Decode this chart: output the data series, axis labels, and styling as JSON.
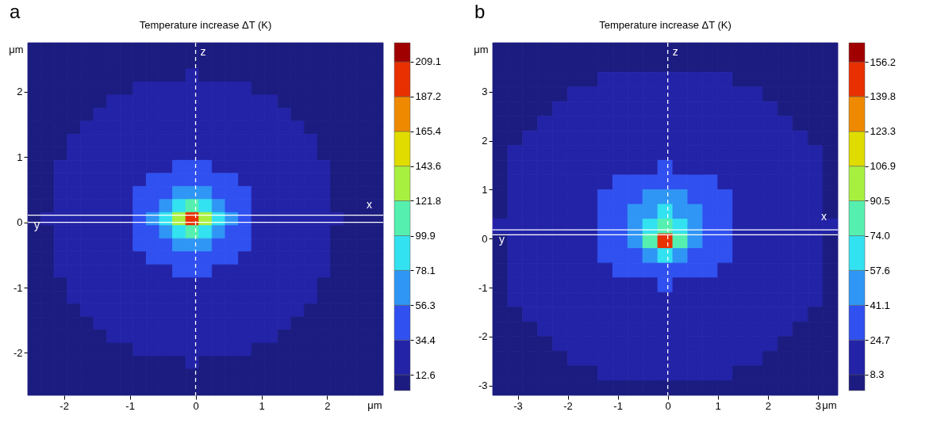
{
  "chart_data": [
    {
      "type": "heatmap",
      "title": "Temperature increase ΔT (K)",
      "xlabel": "μm",
      "ylabel": "μm",
      "annotations": [
        "a"
      ],
      "ref_lines": [
        {
          "axis": "x",
          "value": 0,
          "label": "z",
          "color": "#ffffff",
          "line_style": "dashed"
        },
        {
          "axis": "y",
          "value": 0,
          "label": "x",
          "color": "#ffffff",
          "line_style": "solid"
        },
        {
          "axis": "y",
          "value": 0.11,
          "label": "y",
          "color": "#ffffff",
          "line_style": "solid"
        }
      ],
      "xlim": [
        -2.55,
        2.85
      ],
      "ylim": [
        -2.65,
        2.75
      ],
      "xticks": [
        -2,
        -1,
        0,
        1,
        2
      ],
      "yticks": [
        -2,
        -1,
        0,
        1,
        2
      ],
      "clim": [
        2.7,
        221
      ],
      "cticks": [
        12.6,
        34.4,
        56.3,
        78.1,
        99.9,
        121.8,
        143.6,
        165.4,
        187.2,
        209.1
      ],
      "colors": [
        "#1c1c80",
        "#2323a8",
        "#3050f0",
        "#3096f5",
        "#33e2f0",
        "#55f0b0",
        "#a8f040",
        "#e0dc00",
        "#ef8a00",
        "#e83000",
        "#a00000"
      ],
      "cells": [
        [
          7.7,
          7.7,
          7.7,
          7.7,
          7.7,
          7.7,
          7.7,
          7.7,
          7.7,
          7.7,
          7.7,
          7.7,
          7.7,
          7.7,
          7.7,
          7.7,
          7.7,
          7.7,
          7.7,
          7.7,
          7.7,
          7.7,
          7.7,
          7.7,
          7.7,
          7.7,
          7.7
        ],
        [
          7.7,
          7.7,
          7.7,
          7.7,
          7.7,
          7.7,
          7.7,
          7.7,
          7.7,
          7.7,
          7.7,
          7.7,
          7.7,
          7.7,
          7.7,
          7.7,
          7.7,
          7.7,
          7.7,
          7.7,
          7.7,
          7.7,
          7.7,
          7.7,
          7.7,
          7.7,
          7.7
        ],
        [
          7.7,
          7.7,
          7.7,
          7.7,
          7.7,
          7.7,
          7.7,
          7.7,
          7.7,
          7.7,
          7.7,
          7.7,
          23.5,
          7.7,
          7.7,
          7.7,
          7.7,
          7.7,
          7.7,
          7.7,
          7.7,
          7.7,
          7.7,
          7.7,
          7.7,
          7.7,
          7.7
        ],
        [
          7.7,
          7.7,
          7.7,
          7.7,
          7.7,
          7.7,
          7.7,
          7.7,
          23.5,
          23.5,
          23.5,
          23.5,
          23.5,
          23.5,
          23.5,
          23.5,
          23.5,
          7.7,
          7.7,
          7.7,
          7.7,
          7.7,
          7.7,
          7.7,
          7.7,
          7.7,
          7.7
        ],
        [
          7.7,
          7.7,
          7.7,
          7.7,
          7.7,
          7.7,
          23.5,
          23.5,
          23.5,
          23.5,
          23.5,
          23.5,
          23.5,
          23.5,
          23.5,
          23.5,
          23.5,
          23.5,
          23.5,
          7.7,
          7.7,
          7.7,
          7.7,
          7.7,
          7.7,
          7.7,
          7.7
        ],
        [
          7.7,
          7.7,
          7.7,
          7.7,
          7.7,
          23.5,
          23.5,
          23.5,
          23.5,
          23.5,
          23.5,
          23.5,
          23.5,
          23.5,
          23.5,
          23.5,
          23.5,
          23.5,
          23.5,
          23.5,
          7.7,
          7.7,
          7.7,
          7.7,
          7.7,
          7.7,
          7.7
        ],
        [
          7.7,
          7.7,
          7.7,
          7.7,
          23.5,
          23.5,
          23.5,
          23.5,
          23.5,
          23.5,
          23.5,
          23.5,
          23.5,
          23.5,
          23.5,
          23.5,
          23.5,
          23.5,
          23.5,
          23.5,
          23.5,
          7.7,
          7.7,
          7.7,
          7.7,
          7.7,
          7.7
        ],
        [
          7.7,
          7.7,
          7.7,
          23.5,
          23.5,
          23.5,
          23.5,
          23.5,
          23.5,
          23.5,
          23.5,
          23.5,
          23.5,
          23.5,
          23.5,
          23.5,
          23.5,
          23.5,
          23.5,
          23.5,
          23.5,
          23.5,
          7.7,
          7.7,
          7.7,
          7.7,
          7.7
        ],
        [
          7.7,
          7.7,
          7.7,
          23.5,
          23.5,
          23.5,
          23.5,
          23.5,
          23.5,
          23.5,
          23.5,
          23.5,
          23.5,
          23.5,
          23.5,
          23.5,
          23.5,
          23.5,
          23.5,
          23.5,
          23.5,
          23.5,
          7.7,
          7.7,
          7.7,
          7.7,
          7.7
        ],
        [
          7.7,
          7.7,
          23.5,
          23.5,
          23.5,
          23.5,
          23.5,
          23.5,
          23.5,
          23.5,
          23.5,
          45.4,
          45.4,
          45.4,
          23.5,
          23.5,
          23.5,
          23.5,
          23.5,
          23.5,
          23.5,
          23.5,
          23.5,
          7.7,
          7.7,
          7.7,
          7.7
        ],
        [
          7.7,
          7.7,
          23.5,
          23.5,
          23.5,
          23.5,
          23.5,
          23.5,
          23.5,
          45.4,
          45.4,
          45.4,
          45.4,
          45.4,
          45.4,
          45.4,
          23.5,
          23.5,
          23.5,
          23.5,
          23.5,
          23.5,
          23.5,
          7.7,
          7.7,
          7.7,
          7.7
        ],
        [
          7.7,
          7.7,
          23.5,
          23.5,
          23.5,
          23.5,
          23.5,
          23.5,
          45.4,
          45.4,
          45.4,
          67.2,
          67.2,
          67.2,
          45.4,
          45.4,
          45.4,
          23.5,
          23.5,
          23.5,
          23.5,
          23.5,
          23.5,
          7.7,
          7.7,
          7.7,
          7.7
        ],
        [
          7.7,
          7.7,
          23.5,
          23.5,
          23.5,
          23.5,
          23.5,
          23.5,
          45.4,
          45.4,
          67.2,
          89.0,
          110.9,
          89.0,
          67.2,
          45.4,
          45.4,
          23.5,
          23.5,
          23.5,
          23.5,
          23.5,
          23.5,
          7.7,
          7.7,
          7.7,
          7.7
        ],
        [
          7.7,
          23.5,
          23.5,
          23.5,
          23.5,
          23.5,
          23.5,
          23.5,
          45.4,
          67.2,
          89.0,
          132.7,
          198.2,
          132.7,
          89.0,
          67.2,
          45.4,
          23.5,
          23.5,
          23.5,
          23.5,
          23.5,
          23.5,
          23.5,
          7.7,
          7.7,
          7.7
        ],
        [
          7.7,
          7.7,
          23.5,
          23.5,
          23.5,
          23.5,
          23.5,
          23.5,
          45.4,
          45.4,
          67.2,
          89.0,
          110.9,
          89.0,
          67.2,
          45.4,
          45.4,
          23.5,
          23.5,
          23.5,
          23.5,
          23.5,
          23.5,
          7.7,
          7.7,
          7.7,
          7.7
        ],
        [
          7.7,
          7.7,
          23.5,
          23.5,
          23.5,
          23.5,
          23.5,
          23.5,
          45.4,
          45.4,
          45.4,
          67.2,
          67.2,
          67.2,
          45.4,
          45.4,
          45.4,
          23.5,
          23.5,
          23.5,
          23.5,
          23.5,
          23.5,
          7.7,
          7.7,
          7.7,
          7.7
        ],
        [
          7.7,
          7.7,
          23.5,
          23.5,
          23.5,
          23.5,
          23.5,
          23.5,
          23.5,
          45.4,
          45.4,
          45.4,
          45.4,
          45.4,
          45.4,
          45.4,
          23.5,
          23.5,
          23.5,
          23.5,
          23.5,
          23.5,
          23.5,
          7.7,
          7.7,
          7.7,
          7.7
        ],
        [
          7.7,
          7.7,
          23.5,
          23.5,
          23.5,
          23.5,
          23.5,
          23.5,
          23.5,
          23.5,
          23.5,
          45.4,
          45.4,
          45.4,
          23.5,
          23.5,
          23.5,
          23.5,
          23.5,
          23.5,
          23.5,
          23.5,
          23.5,
          7.7,
          7.7,
          7.7,
          7.7
        ],
        [
          7.7,
          7.7,
          7.7,
          23.5,
          23.5,
          23.5,
          23.5,
          23.5,
          23.5,
          23.5,
          23.5,
          23.5,
          23.5,
          23.5,
          23.5,
          23.5,
          23.5,
          23.5,
          23.5,
          23.5,
          23.5,
          23.5,
          7.7,
          7.7,
          7.7,
          7.7,
          7.7
        ],
        [
          7.7,
          7.7,
          7.7,
          23.5,
          23.5,
          23.5,
          23.5,
          23.5,
          23.5,
          23.5,
          23.5,
          23.5,
          23.5,
          23.5,
          23.5,
          23.5,
          23.5,
          23.5,
          23.5,
          23.5,
          23.5,
          23.5,
          7.7,
          7.7,
          7.7,
          7.7,
          7.7
        ],
        [
          7.7,
          7.7,
          7.7,
          7.7,
          23.5,
          23.5,
          23.5,
          23.5,
          23.5,
          23.5,
          23.5,
          23.5,
          23.5,
          23.5,
          23.5,
          23.5,
          23.5,
          23.5,
          23.5,
          23.5,
          23.5,
          7.7,
          7.7,
          7.7,
          7.7,
          7.7,
          7.7
        ],
        [
          7.7,
          7.7,
          7.7,
          7.7,
          7.7,
          23.5,
          23.5,
          23.5,
          23.5,
          23.5,
          23.5,
          23.5,
          23.5,
          23.5,
          23.5,
          23.5,
          23.5,
          23.5,
          23.5,
          23.5,
          7.7,
          7.7,
          7.7,
          7.7,
          7.7,
          7.7,
          7.7
        ],
        [
          7.7,
          7.7,
          7.7,
          7.7,
          7.7,
          7.7,
          23.5,
          23.5,
          23.5,
          23.5,
          23.5,
          23.5,
          23.5,
          23.5,
          23.5,
          23.5,
          23.5,
          23.5,
          23.5,
          7.7,
          7.7,
          7.7,
          7.7,
          7.7,
          7.7,
          7.7,
          7.7
        ],
        [
          7.7,
          7.7,
          7.7,
          7.7,
          7.7,
          7.7,
          7.7,
          7.7,
          23.5,
          23.5,
          23.5,
          23.5,
          23.5,
          23.5,
          23.5,
          23.5,
          23.5,
          7.7,
          7.7,
          7.7,
          7.7,
          7.7,
          7.7,
          7.7,
          7.7,
          7.7,
          7.7
        ],
        [
          7.7,
          7.7,
          7.7,
          7.7,
          7.7,
          7.7,
          7.7,
          7.7,
          7.7,
          7.7,
          7.7,
          7.7,
          23.5,
          7.7,
          7.7,
          7.7,
          7.7,
          7.7,
          7.7,
          7.7,
          7.7,
          7.7,
          7.7,
          7.7,
          7.7,
          7.7,
          7.7
        ],
        [
          7.7,
          7.7,
          7.7,
          7.7,
          7.7,
          7.7,
          7.7,
          7.7,
          7.7,
          7.7,
          7.7,
          7.7,
          7.7,
          7.7,
          7.7,
          7.7,
          7.7,
          7.7,
          7.7,
          7.7,
          7.7,
          7.7,
          7.7,
          7.7,
          7.7,
          7.7,
          7.7
        ],
        [
          7.7,
          7.7,
          7.7,
          7.7,
          7.7,
          7.7,
          7.7,
          7.7,
          7.7,
          7.7,
          7.7,
          7.7,
          7.7,
          7.7,
          7.7,
          7.7,
          7.7,
          7.7,
          7.7,
          7.7,
          7.7,
          7.7,
          7.7,
          7.7,
          7.7,
          7.7,
          7.7
        ]
      ]
    },
    {
      "type": "heatmap",
      "title": "Temperature increase ΔT (K)",
      "xlabel": "μm",
      "ylabel": "μm",
      "annotations": [
        "b"
      ],
      "ref_lines": [
        {
          "axis": "x",
          "value": 0,
          "label": "z",
          "color": "#ffffff",
          "line_style": "dashed"
        },
        {
          "axis": "y",
          "value": 0.08,
          "label": "x",
          "color": "#ffffff",
          "line_style": "solid"
        },
        {
          "axis": "y",
          "value": 0.18,
          "label": "y",
          "color": "#ffffff",
          "line_style": "solid"
        }
      ],
      "xlim": [
        -3.5,
        3.4
      ],
      "ylim": [
        -3.2,
        4.0
      ],
      "xticks": [
        -3,
        -2,
        -1,
        0,
        1,
        2,
        3
      ],
      "yticks": [
        -3,
        -2,
        -1,
        0,
        1,
        2,
        3
      ],
      "clim": [
        0.8,
        165.2
      ],
      "cticks": [
        8.3,
        24.7,
        41.1,
        57.6,
        {
          "value": 74,
          "label": "74.0"
        },
        90.5,
        106.9,
        123.3,
        139.8,
        156.2
      ],
      "colors": [
        "#1c1c80",
        "#2323a8",
        "#3050f0",
        "#3096f5",
        "#33e2f0",
        "#55f0b0",
        "#a8f040",
        "#e0dc00",
        "#ef8a00",
        "#e83000",
        "#a00000"
      ],
      "cells": [
        [
          4.6,
          4.6,
          4.6,
          4.6,
          4.6,
          4.6,
          4.6,
          4.6,
          4.6,
          4.6,
          4.6,
          4.6,
          4.6,
          4.6,
          4.6,
          4.6,
          4.6,
          4.6,
          4.6,
          4.6,
          4.6,
          4.6,
          4.6
        ],
        [
          4.6,
          4.6,
          4.6,
          4.6,
          4.6,
          4.6,
          4.6,
          4.6,
          4.6,
          4.6,
          4.6,
          4.6,
          4.6,
          4.6,
          4.6,
          4.6,
          4.6,
          4.6,
          4.6,
          4.6,
          4.6,
          4.6,
          4.6
        ],
        [
          4.6,
          4.6,
          4.6,
          4.6,
          4.6,
          4.6,
          4.6,
          16.5,
          16.5,
          16.5,
          16.5,
          16.5,
          16.5,
          16.5,
          16.5,
          16.5,
          4.6,
          4.6,
          4.6,
          4.6,
          4.6,
          4.6,
          4.6
        ],
        [
          4.6,
          4.6,
          4.6,
          4.6,
          4.6,
          16.5,
          16.5,
          16.5,
          16.5,
          16.5,
          16.5,
          16.5,
          16.5,
          16.5,
          16.5,
          16.5,
          16.5,
          16.5,
          4.6,
          4.6,
          4.6,
          4.6,
          4.6
        ],
        [
          4.6,
          4.6,
          4.6,
          4.6,
          16.5,
          16.5,
          16.5,
          16.5,
          16.5,
          16.5,
          16.5,
          16.5,
          16.5,
          16.5,
          16.5,
          16.5,
          16.5,
          16.5,
          16.5,
          4.6,
          4.6,
          4.6,
          4.6
        ],
        [
          4.6,
          4.6,
          4.6,
          16.5,
          16.5,
          16.5,
          16.5,
          16.5,
          16.5,
          16.5,
          16.5,
          16.5,
          16.5,
          16.5,
          16.5,
          16.5,
          16.5,
          16.5,
          16.5,
          16.5,
          4.6,
          4.6,
          4.6
        ],
        [
          4.6,
          4.6,
          16.5,
          16.5,
          16.5,
          16.5,
          16.5,
          16.5,
          16.5,
          16.5,
          16.5,
          16.5,
          16.5,
          16.5,
          16.5,
          16.5,
          16.5,
          16.5,
          16.5,
          16.5,
          16.5,
          4.6,
          4.6
        ],
        [
          4.6,
          16.5,
          16.5,
          16.5,
          16.5,
          16.5,
          16.5,
          16.5,
          16.5,
          16.5,
          16.5,
          16.5,
          16.5,
          16.5,
          16.5,
          16.5,
          16.5,
          16.5,
          16.5,
          16.5,
          16.5,
          16.5,
          4.6
        ],
        [
          4.6,
          16.5,
          16.5,
          16.5,
          16.5,
          16.5,
          16.5,
          16.5,
          16.5,
          16.5,
          16.5,
          32.9,
          16.5,
          16.5,
          16.5,
          16.5,
          16.5,
          16.5,
          16.5,
          16.5,
          16.5,
          16.5,
          4.6
        ],
        [
          4.6,
          16.5,
          16.5,
          16.5,
          16.5,
          16.5,
          16.5,
          16.5,
          32.9,
          32.9,
          32.9,
          32.9,
          32.9,
          32.9,
          32.9,
          16.5,
          16.5,
          16.5,
          16.5,
          16.5,
          16.5,
          16.5,
          4.6
        ],
        [
          4.6,
          16.5,
          16.5,
          16.5,
          16.5,
          16.5,
          16.5,
          32.9,
          32.9,
          32.9,
          49.4,
          49.4,
          49.4,
          32.9,
          32.9,
          32.9,
          16.5,
          16.5,
          16.5,
          16.5,
          16.5,
          16.5,
          4.6
        ],
        [
          4.6,
          16.5,
          16.5,
          16.5,
          16.5,
          16.5,
          16.5,
          32.9,
          32.9,
          49.4,
          49.4,
          65.8,
          49.4,
          49.4,
          32.9,
          32.9,
          16.5,
          16.5,
          16.5,
          16.5,
          16.5,
          16.5,
          4.6
        ],
        [
          16.5,
          16.5,
          16.5,
          16.5,
          16.5,
          16.5,
          16.5,
          32.9,
          32.9,
          49.4,
          65.8,
          82.3,
          65.8,
          49.4,
          32.9,
          32.9,
          16.5,
          16.5,
          16.5,
          16.5,
          16.5,
          16.5,
          16.5
        ],
        [
          4.6,
          16.5,
          16.5,
          16.5,
          16.5,
          16.5,
          16.5,
          32.9,
          32.9,
          49.4,
          82.3,
          148.0,
          82.3,
          49.4,
          32.9,
          32.9,
          16.5,
          16.5,
          16.5,
          16.5,
          16.5,
          16.5,
          4.6
        ],
        [
          4.6,
          16.5,
          16.5,
          16.5,
          16.5,
          16.5,
          16.5,
          32.9,
          32.9,
          32.9,
          49.4,
          65.8,
          49.4,
          32.9,
          32.9,
          32.9,
          16.5,
          16.5,
          16.5,
          16.5,
          16.5,
          16.5,
          4.6
        ],
        [
          4.6,
          16.5,
          16.5,
          16.5,
          16.5,
          16.5,
          16.5,
          16.5,
          32.9,
          32.9,
          32.9,
          32.9,
          32.9,
          32.9,
          32.9,
          16.5,
          16.5,
          16.5,
          16.5,
          16.5,
          16.5,
          16.5,
          4.6
        ],
        [
          4.6,
          16.5,
          16.5,
          16.5,
          16.5,
          16.5,
          16.5,
          16.5,
          16.5,
          16.5,
          16.5,
          32.9,
          16.5,
          16.5,
          16.5,
          16.5,
          16.5,
          16.5,
          16.5,
          16.5,
          16.5,
          16.5,
          4.6
        ],
        [
          4.6,
          16.5,
          16.5,
          16.5,
          16.5,
          16.5,
          16.5,
          16.5,
          16.5,
          16.5,
          16.5,
          16.5,
          16.5,
          16.5,
          16.5,
          16.5,
          16.5,
          16.5,
          16.5,
          16.5,
          16.5,
          16.5,
          4.6
        ],
        [
          4.6,
          4.6,
          16.5,
          16.5,
          16.5,
          16.5,
          16.5,
          16.5,
          16.5,
          16.5,
          16.5,
          16.5,
          16.5,
          16.5,
          16.5,
          16.5,
          16.5,
          16.5,
          16.5,
          16.5,
          16.5,
          4.6,
          4.6
        ],
        [
          4.6,
          4.6,
          4.6,
          16.5,
          16.5,
          16.5,
          16.5,
          16.5,
          16.5,
          16.5,
          16.5,
          16.5,
          16.5,
          16.5,
          16.5,
          16.5,
          16.5,
          16.5,
          16.5,
          16.5,
          4.6,
          4.6,
          4.6
        ],
        [
          4.6,
          4.6,
          4.6,
          4.6,
          16.5,
          16.5,
          16.5,
          16.5,
          16.5,
          16.5,
          16.5,
          16.5,
          16.5,
          16.5,
          16.5,
          16.5,
          16.5,
          16.5,
          16.5,
          4.6,
          4.6,
          4.6,
          4.6
        ],
        [
          4.6,
          4.6,
          4.6,
          4.6,
          4.6,
          16.5,
          16.5,
          16.5,
          16.5,
          16.5,
          16.5,
          16.5,
          16.5,
          16.5,
          16.5,
          16.5,
          16.5,
          16.5,
          4.6,
          4.6,
          4.6,
          4.6,
          4.6
        ],
        [
          4.6,
          4.6,
          4.6,
          4.6,
          4.6,
          4.6,
          4.6,
          16.5,
          16.5,
          16.5,
          16.5,
          16.5,
          16.5,
          16.5,
          16.5,
          16.5,
          4.6,
          4.6,
          4.6,
          4.6,
          4.6,
          4.6,
          4.6
        ],
        [
          4.6,
          4.6,
          4.6,
          4.6,
          4.6,
          4.6,
          4.6,
          4.6,
          4.6,
          4.6,
          4.6,
          4.6,
          4.6,
          4.6,
          4.6,
          4.6,
          4.6,
          4.6,
          4.6,
          4.6,
          4.6,
          4.6,
          4.6
        ]
      ]
    }
  ]
}
